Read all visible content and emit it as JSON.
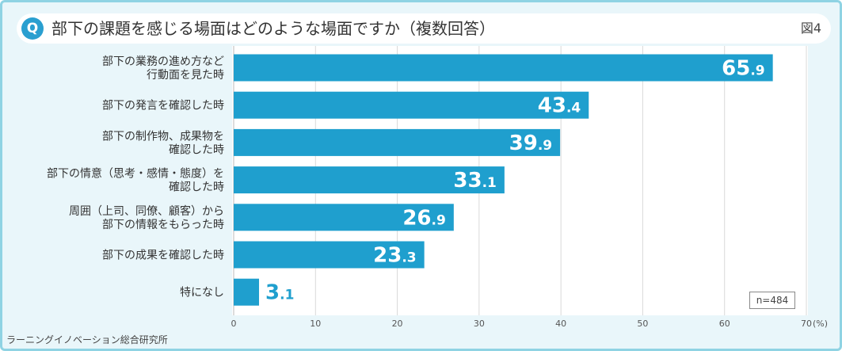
{
  "header": {
    "badge": "Q",
    "question": "部下の課題を感じる場面はどのような場面ですか（複数回答）",
    "figure_label": "図4"
  },
  "sample_size": "n=484",
  "source": "ラーニングイノベーション総合研究所",
  "colors": {
    "bar": "#1f9fce",
    "value_on_bar": "#ffffff",
    "value_outside": "#1f9fce",
    "grid": "#d9d9d9"
  },
  "chart_data": {
    "type": "bar",
    "orientation": "horizontal",
    "categories": [
      [
        "部下の業務の進め方など",
        "行動面を見た時"
      ],
      [
        "部下の発言を確認した時"
      ],
      [
        "部下の制作物、成果物を",
        "確認した時"
      ],
      [
        "部下の情意（思考・感情・態度）を",
        "確認した時"
      ],
      [
        "周囲（上司、同僚、顧客）から",
        "部下の情報をもらった時"
      ],
      [
        "部下の成果を確認した時"
      ],
      [
        "特になし"
      ]
    ],
    "values": [
      65.9,
      43.4,
      39.9,
      33.1,
      26.9,
      23.3,
      3.1
    ],
    "xlim": [
      0,
      70
    ],
    "xticks": [
      "0",
      "10",
      "20",
      "30",
      "40",
      "50",
      "60",
      "70"
    ],
    "x_unit": "(%)",
    "grid": true
  }
}
